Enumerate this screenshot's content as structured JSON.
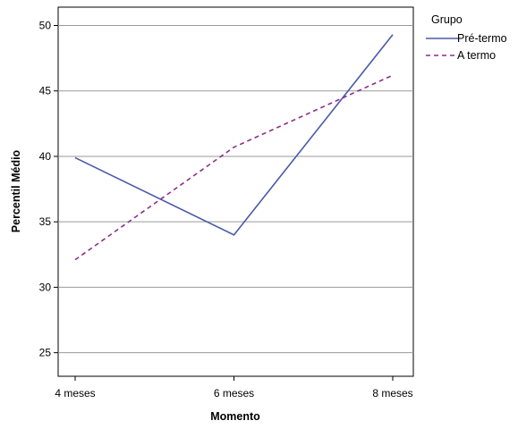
{
  "chart_data": {
    "type": "line",
    "title": "",
    "xlabel": "Momento",
    "ylabel": "Percentil Médio",
    "categories": [
      "4 meses",
      "6 meses",
      "8 meses"
    ],
    "ylim": [
      23.2,
      51.4
    ],
    "yticks": [
      25,
      30,
      35,
      40,
      45,
      50
    ],
    "grid": {
      "horizontal": true,
      "vertical": false
    },
    "legend": {
      "title": "Grupo",
      "placement": "top-right, outside plot"
    },
    "series": [
      {
        "name": "Pré-termo",
        "values": [
          39.9,
          34.0,
          49.3
        ],
        "color": "#4a5aa8",
        "dash": "solid"
      },
      {
        "name": "A termo",
        "values": [
          32.1,
          40.7,
          46.2
        ],
        "color": "#8b2f86",
        "dash": "dashed"
      }
    ]
  }
}
